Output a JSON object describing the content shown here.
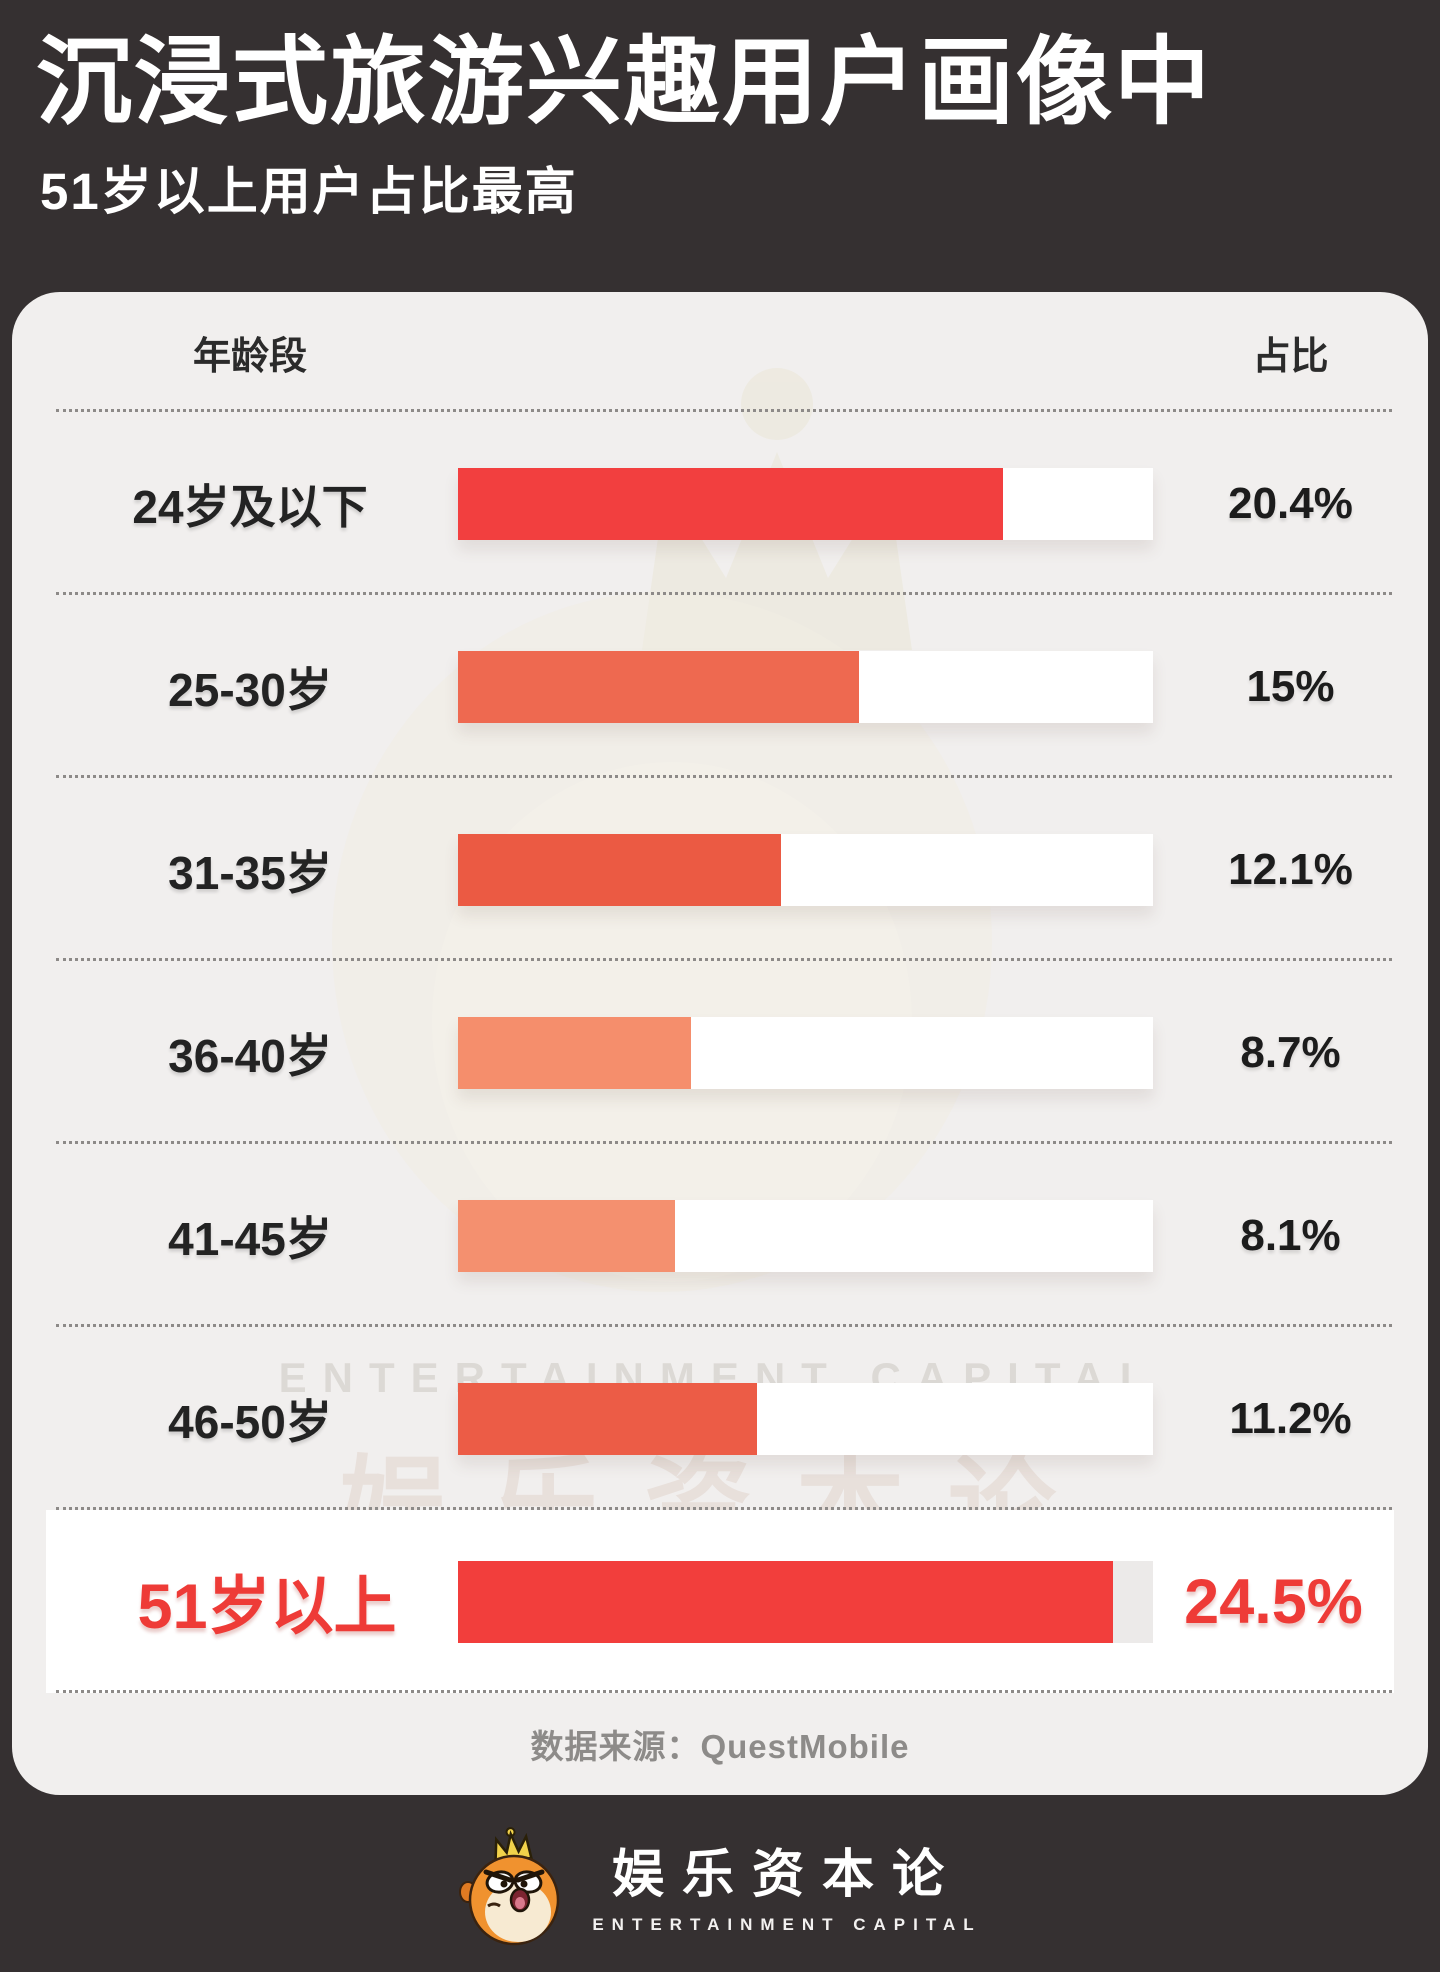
{
  "header": {
    "title": "沉浸式旅游兴趣用户画像中",
    "subtitle": "51岁以上用户占比最高"
  },
  "table": {
    "age_column_header": "年龄段",
    "share_column_header": "占比"
  },
  "chart_data": {
    "type": "bar",
    "orientation": "horizontal",
    "title": "沉浸式旅游兴趣用户画像中 51岁以上用户占比最高",
    "categories": [
      "24岁及以下",
      "25-30岁",
      "31-35岁",
      "36-40岁",
      "41-45岁",
      "46-50岁",
      "51岁以上"
    ],
    "values": [
      20.4,
      15,
      12.1,
      8.7,
      8.1,
      11.2,
      24.5
    ],
    "value_labels": [
      "20.4%",
      "15%",
      "12.1%",
      "8.7%",
      "8.1%",
      "11.2%",
      "24.5%"
    ],
    "bar_colors": [
      "#f23f3f",
      "#ee6950",
      "#eb5a43",
      "#f58e6c",
      "#f4906f",
      "#ec5c46",
      "#f23e3c"
    ],
    "highlight_index": 6,
    "axis_max": 26,
    "xlabel": "占比",
    "ylabel": "年龄段",
    "grid": false,
    "legend": false,
    "source": "数据来源：QuestMobile"
  },
  "source": {
    "label": "数据来源：QuestMobile"
  },
  "watermark": {
    "en": "ENTERTAINMENT CAPITAL",
    "cn": "娱乐资本论"
  },
  "footer": {
    "brand_cn": "娱乐资本论",
    "brand_en": "ENTERTAINMENT CAPITAL"
  },
  "colors": {
    "background_dark": "#353031",
    "card": "#f1efee",
    "accent_red": "#ee3b37",
    "track_white": "#ffffff"
  }
}
